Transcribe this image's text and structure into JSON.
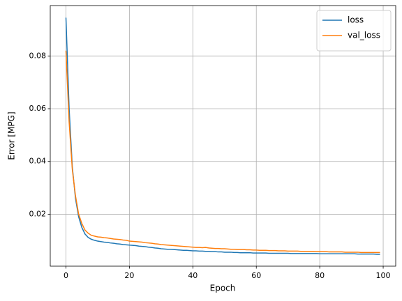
{
  "chart_data": {
    "type": "line",
    "xlabel": "Epoch",
    "ylabel": "Error [MPG]",
    "x": [
      0,
      1,
      2,
      3,
      4,
      5,
      6,
      7,
      8,
      9,
      10,
      11,
      12,
      13,
      14,
      15,
      16,
      17,
      18,
      19,
      20,
      21,
      22,
      23,
      24,
      25,
      26,
      27,
      28,
      29,
      30,
      31,
      32,
      33,
      34,
      35,
      36,
      37,
      38,
      39,
      40,
      41,
      42,
      43,
      44,
      45,
      46,
      47,
      48,
      49,
      50,
      51,
      52,
      53,
      54,
      55,
      56,
      57,
      58,
      59,
      60,
      61,
      62,
      63,
      64,
      65,
      66,
      67,
      68,
      69,
      70,
      71,
      72,
      73,
      74,
      75,
      76,
      77,
      78,
      79,
      80,
      81,
      82,
      83,
      84,
      85,
      86,
      87,
      88,
      89,
      90,
      91,
      92,
      93,
      94,
      95,
      96,
      97,
      98,
      99
    ],
    "series": [
      {
        "name": "loss",
        "color": "#1f77b4",
        "values": [
          0.0945,
          0.06,
          0.038,
          0.026,
          0.019,
          0.015,
          0.0125,
          0.0112,
          0.0105,
          0.0101,
          0.0098,
          0.0096,
          0.0094,
          0.0093,
          0.0091,
          0.009,
          0.0088,
          0.0087,
          0.0085,
          0.0084,
          0.0083,
          0.0082,
          0.0081,
          0.0079,
          0.0078,
          0.0077,
          0.0075,
          0.0074,
          0.0072,
          0.0071,
          0.0069,
          0.0068,
          0.0067,
          0.0067,
          0.0066,
          0.0065,
          0.0064,
          0.0063,
          0.0063,
          0.0062,
          0.0061,
          0.0061,
          0.006,
          0.006,
          0.0059,
          0.0059,
          0.0058,
          0.0058,
          0.0057,
          0.0057,
          0.0056,
          0.0056,
          0.0056,
          0.0055,
          0.0055,
          0.0054,
          0.0054,
          0.0054,
          0.0054,
          0.0053,
          0.0053,
          0.0053,
          0.0053,
          0.0053,
          0.0052,
          0.0052,
          0.0052,
          0.0052,
          0.0052,
          0.0052,
          0.0052,
          0.0051,
          0.0051,
          0.0051,
          0.0051,
          0.0051,
          0.0051,
          0.0051,
          0.0051,
          0.0051,
          0.005,
          0.005,
          0.005,
          0.005,
          0.005,
          0.005,
          0.005,
          0.005,
          0.005,
          0.005,
          0.005,
          0.005,
          0.0049,
          0.0049,
          0.0049,
          0.0049,
          0.0049,
          0.0049,
          0.0048,
          0.0048
        ]
      },
      {
        "name": "val_loss",
        "color": "#ff7f0e",
        "values": [
          0.082,
          0.055,
          0.037,
          0.027,
          0.02,
          0.0165,
          0.014,
          0.0128,
          0.012,
          0.0117,
          0.0114,
          0.0113,
          0.0111,
          0.011,
          0.0108,
          0.0106,
          0.0105,
          0.0104,
          0.0102,
          0.0101,
          0.0098,
          0.0097,
          0.0096,
          0.0095,
          0.0094,
          0.0092,
          0.0091,
          0.009,
          0.0088,
          0.0087,
          0.0085,
          0.0084,
          0.0083,
          0.0082,
          0.0081,
          0.008,
          0.0079,
          0.0078,
          0.0077,
          0.0076,
          0.0075,
          0.0074,
          0.0074,
          0.0073,
          0.0074,
          0.0072,
          0.0071,
          0.007,
          0.007,
          0.0069,
          0.0069,
          0.0068,
          0.0067,
          0.0067,
          0.0066,
          0.0066,
          0.0066,
          0.0065,
          0.0065,
          0.0064,
          0.0064,
          0.0063,
          0.0063,
          0.0063,
          0.0062,
          0.0062,
          0.0062,
          0.0061,
          0.0061,
          0.0061,
          0.006,
          0.006,
          0.006,
          0.006,
          0.0059,
          0.0059,
          0.0059,
          0.0059,
          0.0059,
          0.0058,
          0.0058,
          0.0058,
          0.0058,
          0.0057,
          0.0057,
          0.0057,
          0.0057,
          0.0057,
          0.0056,
          0.0056,
          0.0056,
          0.0056,
          0.0056,
          0.0055,
          0.0055,
          0.0055,
          0.0055,
          0.0055,
          0.0055,
          0.0055
        ]
      }
    ],
    "xlim": [
      -4.95,
      103.95
    ],
    "ylim": [
      0.0003,
      0.0991
    ],
    "xticks": [
      0,
      20,
      40,
      60,
      80,
      100
    ],
    "yticks": [
      0.02,
      0.04,
      0.06,
      0.08
    ],
    "grid": true,
    "legend": "upper-right"
  }
}
